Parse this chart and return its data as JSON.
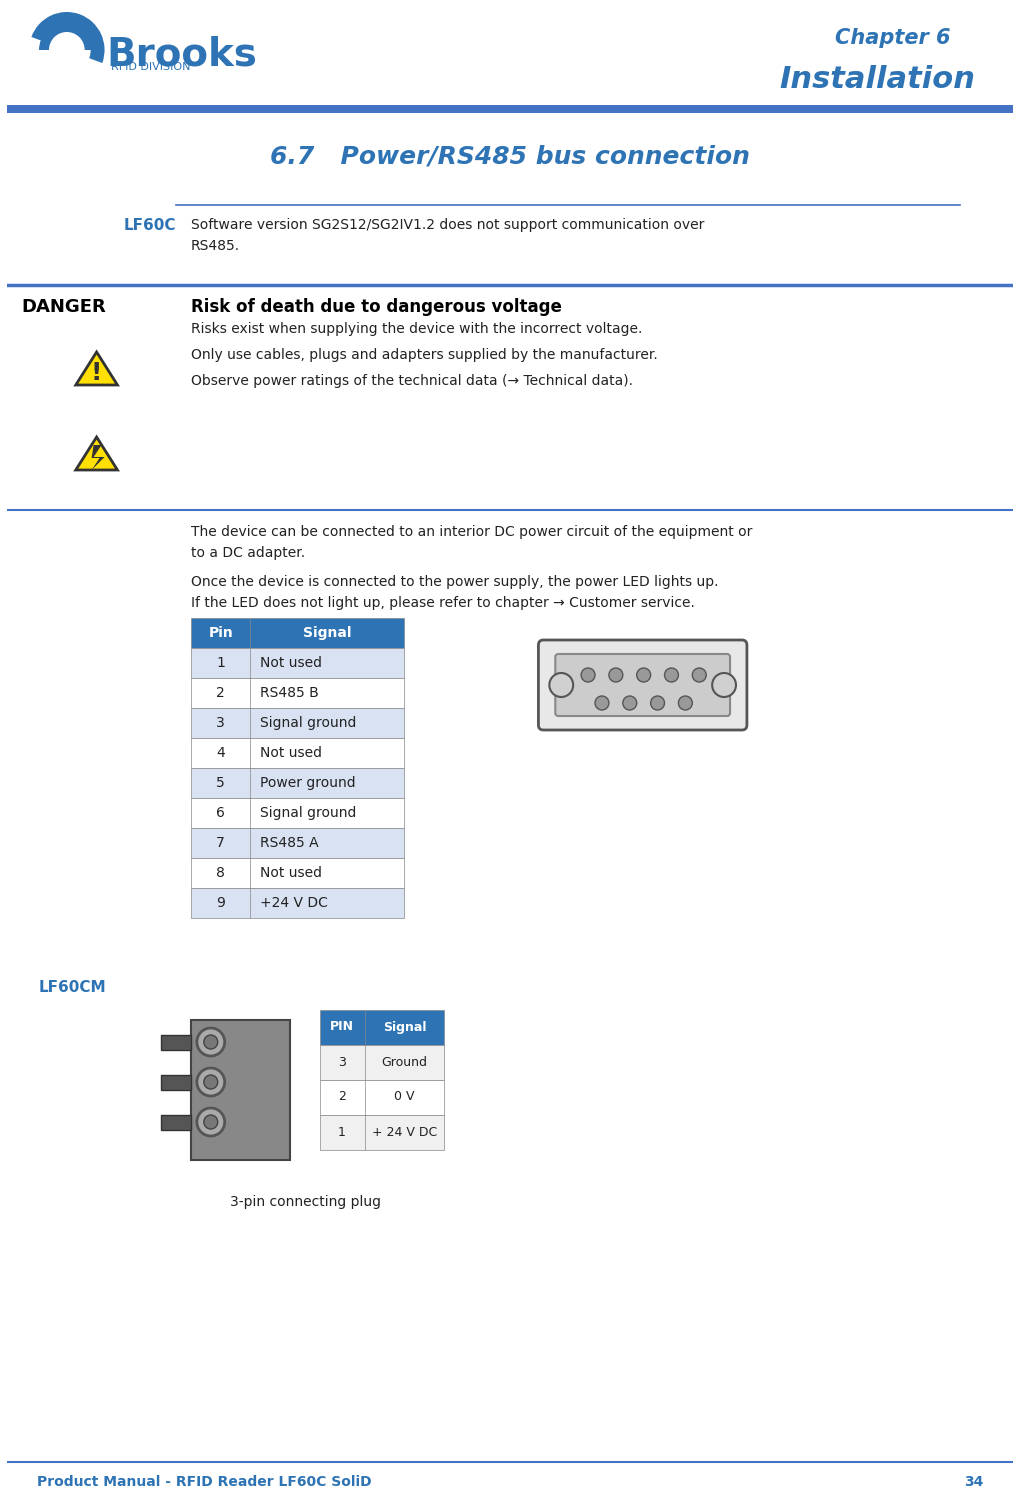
{
  "page_bg": "#ffffff",
  "header_blue": "#4472C4",
  "text_blue": "#4472C4",
  "dark_blue": "#1F4E79",
  "brooks_blue": "#2E74B5",
  "light_blue_row": "#D9E2F3",
  "mid_blue_row": "#BDD7EE",
  "table_header_blue": "#2E74B5",
  "danger_red": "#FF0000",
  "chapter_text": "Chapter 6",
  "installation_text": "Installation",
  "section_title": "6.7   Power/RS485 bus connection",
  "lf60c_label": "LF60C",
  "lf60c_text": "Software version SG2S12/SG2IV1.2 does not support communication over\nRS485.",
  "danger_label": "DANGER",
  "danger_title": "Risk of death due to dangerous voltage",
  "danger_lines": [
    "Risks exist when supplying the device with the incorrect voltage.",
    "Only use cables, plugs and adapters supplied by the manufacturer.",
    "Observe power ratings of the technical data (→ Technical data)."
  ],
  "body_text1": "The device can be connected to an interior DC power circuit of the equipment or\nto a DC adapter.",
  "body_text2": "Once the device is connected to the power supply, the power LED lights up.\nIf the LED does not light up, please refer to chapter → Customer service.",
  "pin_table_headers": [
    "Pin",
    "Signal"
  ],
  "pin_table_rows": [
    [
      "1",
      "Not used"
    ],
    [
      "2",
      "RS485 B"
    ],
    [
      "3",
      "Signal ground"
    ],
    [
      "4",
      "Not used"
    ],
    [
      "5",
      "Power ground"
    ],
    [
      "6",
      "Signal ground"
    ],
    [
      "7",
      "RS485 A"
    ],
    [
      "8",
      "Not used"
    ],
    [
      "9",
      "+24 V DC"
    ]
  ],
  "lf60cm_label": "LF60CM",
  "lf60cm_caption": "3-pin connecting plug",
  "lf60cm_table_headers": [
    "PIN",
    "Signal"
  ],
  "lf60cm_table_rows": [
    [
      "3",
      "Ground"
    ],
    [
      "2",
      "0 V"
    ],
    [
      "1",
      "+ 24 V DC"
    ]
  ],
  "footer_text": "Product Manual - RFID Reader LF60C SoliD",
  "footer_page": "34"
}
